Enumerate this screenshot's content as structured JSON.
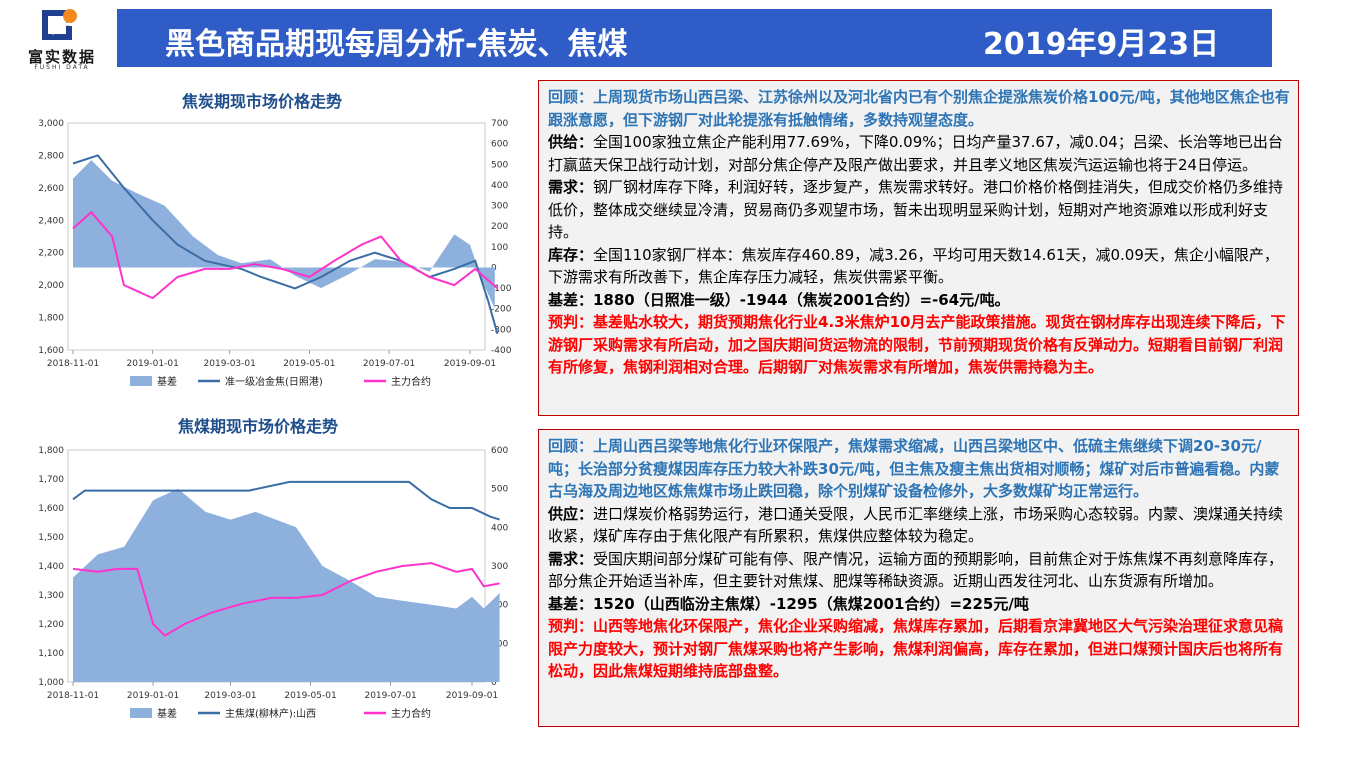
{
  "header": {
    "logo_text": "富实数据",
    "logo_sub": "FUSHI DATA",
    "title": "黑色商品期现每周分析-焦炭、焦煤",
    "date": "2019年9月23日",
    "banner_color": "#2f5cc6"
  },
  "chart_data": [
    {
      "type": "line",
      "title": "焦炭期现市场价格走势",
      "x_ticks": [
        "2018-11-01",
        "2019-01-01",
        "2019-03-01",
        "2019-05-01",
        "2019-07-01",
        "2019-09-01"
      ],
      "y_left": {
        "ticks": [
          "3,000",
          "2,800",
          "2,600",
          "2,400",
          "2,200",
          "2,000",
          "1,800",
          "1,600"
        ],
        "range": [
          1600,
          3000
        ]
      },
      "y_right": {
        "ticks": [
          "700",
          "600",
          "500",
          "400",
          "300",
          "200",
          "100",
          "0",
          "-100",
          "-200",
          "-300",
          "-400"
        ],
        "range": [
          -400,
          700
        ]
      },
      "series": [
        {
          "name": "基差",
          "style": "area",
          "axis": "right",
          "color": "#8eb0dd",
          "x": [
            "2018-11-01",
            "2018-11-15",
            "2018-12-01",
            "2018-12-20",
            "2019-01-10",
            "2019-02-01",
            "2019-02-20",
            "2019-03-10",
            "2019-04-01",
            "2019-04-20",
            "2019-05-10",
            "2019-06-01",
            "2019-06-20",
            "2019-07-10",
            "2019-08-01",
            "2019-08-20",
            "2019-09-01",
            "2019-09-10",
            "2019-09-20"
          ],
          "values": [
            430,
            520,
            420,
            360,
            300,
            150,
            60,
            20,
            40,
            -40,
            -100,
            -30,
            40,
            30,
            -20,
            160,
            110,
            -60,
            -200
          ]
        },
        {
          "name": "准一级冶金焦(日照港)",
          "style": "line",
          "axis": "left",
          "color": "#3a6ea5",
          "x": [
            "2018-11-01",
            "2018-11-20",
            "2018-12-10",
            "2019-01-01",
            "2019-01-20",
            "2019-02-10",
            "2019-03-10",
            "2019-03-25",
            "2019-04-20",
            "2019-05-10",
            "2019-06-01",
            "2019-06-20",
            "2019-07-10",
            "2019-08-01",
            "2019-08-20",
            "2019-09-05",
            "2019-09-15",
            "2019-09-22"
          ],
          "values": [
            2750,
            2800,
            2600,
            2400,
            2250,
            2150,
            2100,
            2050,
            1980,
            2050,
            2150,
            2200,
            2150,
            2050,
            2100,
            2150,
            1900,
            1700
          ]
        },
        {
          "name": "主力合约",
          "style": "line",
          "axis": "left",
          "color": "#ff33cc",
          "x": [
            "2018-11-01",
            "2018-11-15",
            "2018-12-01",
            "2018-12-10",
            "2019-01-01",
            "2019-01-20",
            "2019-02-10",
            "2019-03-01",
            "2019-03-20",
            "2019-04-10",
            "2019-05-01",
            "2019-05-20",
            "2019-06-10",
            "2019-06-25",
            "2019-07-10",
            "2019-08-01",
            "2019-08-20",
            "2019-09-05",
            "2019-09-22"
          ],
          "values": [
            2350,
            2450,
            2300,
            2000,
            1920,
            2050,
            2100,
            2100,
            2130,
            2100,
            2050,
            2150,
            2250,
            2300,
            2150,
            2050,
            2000,
            2100,
            1980
          ]
        }
      ]
    },
    {
      "type": "line",
      "title": "焦煤期现市场价格走势",
      "x_ticks": [
        "2018-11-01",
        "2019-01-01",
        "2019-03-01",
        "2019-05-01",
        "2019-07-01",
        "2019-09-01"
      ],
      "y_left": {
        "ticks": [
          "1,800",
          "1,700",
          "1,600",
          "1,500",
          "1,400",
          "1,300",
          "1,200",
          "1,100",
          "1,000"
        ],
        "range": [
          1000,
          1800
        ]
      },
      "y_right": {
        "ticks": [
          "600",
          "500",
          "400",
          "300",
          "200",
          "100",
          "0"
        ],
        "range": [
          0,
          600
        ]
      },
      "series": [
        {
          "name": "基差",
          "style": "area",
          "axis": "right",
          "color": "#8eb0dd",
          "x": [
            "2018-11-01",
            "2018-11-20",
            "2018-12-10",
            "2019-01-01",
            "2019-01-20",
            "2019-02-10",
            "2019-03-01",
            "2019-03-20",
            "2019-04-20",
            "2019-05-10",
            "2019-06-01",
            "2019-06-20",
            "2019-07-10",
            "2019-08-01",
            "2019-08-20",
            "2019-09-01",
            "2019-09-10",
            "2019-09-22"
          ],
          "values": [
            270,
            330,
            350,
            470,
            500,
            440,
            420,
            440,
            400,
            300,
            260,
            220,
            210,
            200,
            190,
            220,
            190,
            230
          ]
        },
        {
          "name": "主焦煤(柳林产):山西",
          "style": "line",
          "axis": "left",
          "color": "#3a6ea5",
          "x": [
            "2018-11-01",
            "2018-11-10",
            "2018-12-15",
            "2019-02-01",
            "2019-03-15",
            "2019-04-15",
            "2019-05-15",
            "2019-06-15",
            "2019-07-15",
            "2019-08-01",
            "2019-08-15",
            "2019-09-01",
            "2019-09-15",
            "2019-09-22"
          ],
          "values": [
            1630,
            1660,
            1660,
            1660,
            1660,
            1690,
            1690,
            1690,
            1690,
            1630,
            1600,
            1600,
            1570,
            1560
          ]
        },
        {
          "name": "主力合约",
          "style": "line",
          "axis": "left",
          "color": "#ff33cc",
          "x": [
            "2018-11-01",
            "2018-11-20",
            "2018-12-05",
            "2018-12-20",
            "2019-01-01",
            "2019-01-10",
            "2019-01-25",
            "2019-02-15",
            "2019-03-10",
            "2019-04-01",
            "2019-04-20",
            "2019-05-10",
            "2019-06-01",
            "2019-06-20",
            "2019-07-10",
            "2019-08-01",
            "2019-08-20",
            "2019-09-01",
            "2019-09-10",
            "2019-09-22"
          ],
          "values": [
            1390,
            1380,
            1390,
            1390,
            1200,
            1160,
            1200,
            1240,
            1270,
            1290,
            1290,
            1300,
            1350,
            1380,
            1400,
            1410,
            1380,
            1390,
            1330,
            1340
          ]
        }
      ]
    }
  ],
  "coke_box": {
    "review": "回顾：上周现货市场山西吕梁、江苏徐州以及河北省内已有个别焦企提涨焦炭价格100元/吨，其他地区焦企也有跟涨意愿，但下游钢厂对此轮提涨有抵触情绪，多数持观望态度。",
    "supply_label": "供给：",
    "supply_text": "全国100家独立焦企产能利用77.69%，下降0.09%；日均产量37.67，减0.04；吕梁、长治等地已出台打赢蓝天保卫战行动计划，对部分焦企停产及限产做出要求，并且孝义地区焦炭汽运运输也将于24日停运。",
    "demand_label": "需求：",
    "demand_text": "钢厂钢材库存下降，利润好转，逐步复产，焦炭需求转好。港口价格价格倒挂消失，但成交价格仍多维持低价，整体成交继续显冷清，贸易商仍多观望市场，暂未出现明显采购计划，短期对产地资源难以形成利好支持。",
    "stock_label": "库存：",
    "stock_text": "全国110家钢厂样本：焦炭库存460.89，减3.26，平均可用天数14.61天，减0.09天，焦企小幅限产，下游需求有所改善下，焦企库存压力减轻，焦炭供需紧平衡。",
    "basis": "基差：1880（日照准一级）-1944（焦炭2001合约）=-64元/吨。",
    "forecast": "预判：基差贴水较大，期货预期焦化行业4.3米焦炉10月去产能政策措施。现货在钢材库存出现连续下降后，下游钢厂采购需求有所启动，加之国庆期间货运物流的限制，节前预期现货价格有反弹动力。短期看目前钢厂利润有所修复，焦钢利润相对合理。后期钢厂对焦炭需求有所增加，焦炭供需持稳为主。"
  },
  "coal_box": {
    "review": "回顾：上周山西吕梁等地焦化行业环保限产，焦煤需求缩减，山西吕梁地区中、低硫主焦继续下调20-30元/吨；长治部分贫瘦煤因库存压力较大补跌30元/吨，但主焦及瘦主焦出货相对顺畅；煤矿对后市普遍看稳。内蒙古乌海及周边地区炼焦煤市场止跌回稳，除个别煤矿设备检修外，大多数煤矿均正常运行。",
    "supply_label": "供应：",
    "supply_text": "进口煤炭价格弱势运行，港口通关受限，人民币汇率继续上涨，市场采购心态较弱。内蒙、澳煤通关持续收紧，煤矿库存由于焦化限产有所累积，焦煤供应整体较为稳定。",
    "demand_label": "需求：",
    "demand_text": "受国庆期间部分煤矿可能有停、限产情况，运输方面的预期影响，目前焦企对于炼焦煤不再刻意降库存，部分焦企开始适当补库，但主要针对焦煤、肥煤等稀缺资源。近期山西发往河北、山东货源有所增加。",
    "basis": "基差：1520（山西临汾主焦煤）-1295（焦煤2001合约）=225元/吨",
    "forecast": "预判：山西等地焦化环保限产，焦化企业采购缩减，焦煤库存累加，后期看京津冀地区大气污染治理征求意见稿限产力度较大，预计对钢厂焦煤采购也将产生影响，焦煤利润偏高，库存在累加，但进口煤预计国庆后也将所有松动，因此焦煤短期维持底部盘整。"
  }
}
